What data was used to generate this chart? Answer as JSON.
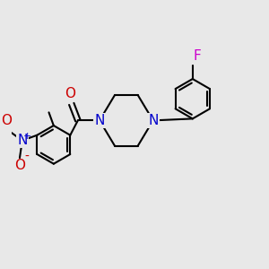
{
  "background_color": "#e8e8e8",
  "bond_color": "#000000",
  "bond_width": 1.5,
  "figsize": [
    3.0,
    3.0
  ],
  "dpi": 100,
  "xlim": [
    0,
    1
  ],
  "ylim": [
    0,
    1
  ]
}
